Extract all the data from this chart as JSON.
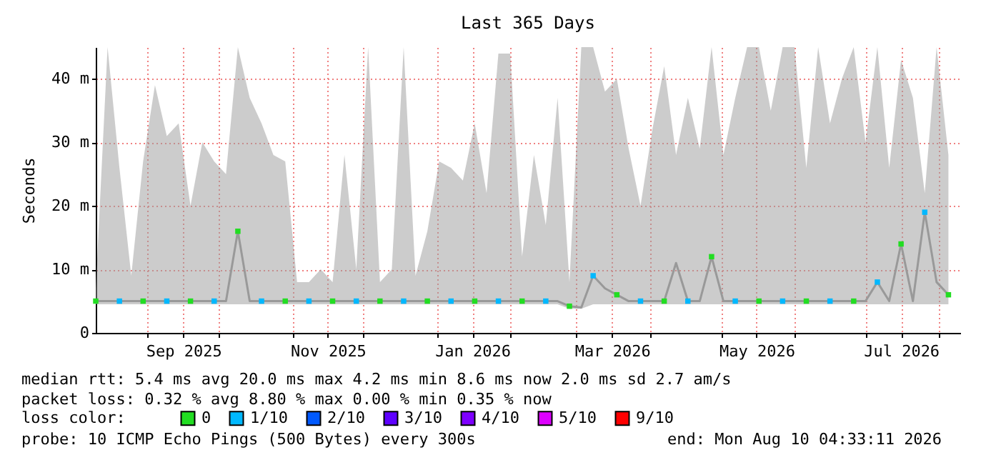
{
  "chart_data": {
    "type": "line",
    "title": "Last 365 Days",
    "ylabel": "Seconds",
    "x": [
      "2025-08-10",
      "2025-08-15",
      "2025-08-20",
      "2025-08-25",
      "2025-08-30",
      "2025-09-04",
      "2025-09-09",
      "2025-09-14",
      "2025-09-19",
      "2025-09-24",
      "2025-09-29",
      "2025-10-04",
      "2025-10-09",
      "2025-10-14",
      "2025-10-19",
      "2025-10-24",
      "2025-10-29",
      "2025-11-03",
      "2025-11-08",
      "2025-11-13",
      "2025-11-18",
      "2025-11-23",
      "2025-11-28",
      "2025-12-03",
      "2025-12-08",
      "2025-12-13",
      "2025-12-18",
      "2025-12-23",
      "2025-12-28",
      "2026-01-02",
      "2026-01-07",
      "2026-01-12",
      "2026-01-17",
      "2026-01-22",
      "2026-01-27",
      "2026-02-01",
      "2026-02-06",
      "2026-02-11",
      "2026-02-16",
      "2026-02-21",
      "2026-02-26",
      "2026-03-03",
      "2026-03-08",
      "2026-03-13",
      "2026-03-18",
      "2026-03-23",
      "2026-03-28",
      "2026-04-02",
      "2026-04-07",
      "2026-04-12",
      "2026-04-17",
      "2026-04-22",
      "2026-04-27",
      "2026-05-02",
      "2026-05-07",
      "2026-05-12",
      "2026-05-17",
      "2026-05-22",
      "2026-05-27",
      "2026-06-01",
      "2026-06-06",
      "2026-06-11",
      "2026-06-16",
      "2026-06-21",
      "2026-06-26",
      "2026-07-01",
      "2026-07-06",
      "2026-07-11",
      "2026-07-16",
      "2026-07-21",
      "2026-07-26",
      "2026-07-31",
      "2026-08-05"
    ],
    "series": [
      {
        "color": "#999999",
        "marker": "none",
        "values": [
          5,
          5,
          5,
          5,
          5,
          5,
          5,
          5,
          5,
          5,
          5,
          5,
          16,
          5,
          5,
          5,
          5,
          5,
          5,
          5,
          5,
          5,
          5,
          5,
          5,
          5,
          5,
          5,
          5,
          5,
          5,
          5,
          5,
          5,
          5,
          5,
          5,
          5,
          5,
          5,
          4.2,
          4,
          9,
          7,
          6,
          5,
          5,
          5,
          5,
          11,
          5,
          5,
          12,
          5,
          5,
          5,
          5,
          5,
          5,
          5,
          5,
          5,
          5,
          5,
          5,
          5,
          8,
          5,
          14,
          5,
          19,
          8,
          6
        ],
        "lower": [
          4.5,
          4.5,
          4.5,
          4.5,
          4.5,
          4.5,
          4.5,
          4.5,
          4.5,
          4.5,
          4.5,
          4.5,
          4.5,
          4.5,
          4.5,
          4.5,
          4.5,
          4.5,
          4.5,
          4.5,
          4.5,
          4.5,
          4.5,
          4.5,
          4.5,
          4.5,
          4.5,
          4.5,
          4.5,
          4.5,
          4.5,
          4.5,
          4.5,
          4.5,
          4.5,
          4.5,
          4.5,
          4.5,
          4.5,
          4.5,
          3.8,
          3.8,
          4.5,
          4.5,
          4.5,
          4.5,
          4.5,
          4.5,
          4.5,
          4.5,
          4.5,
          4.5,
          4.5,
          4.5,
          4.5,
          4.5,
          4.5,
          4.5,
          4.5,
          4.5,
          4.5,
          4.5,
          4.5,
          4.5,
          4.5,
          4.5,
          4.5,
          4.5,
          4.5,
          4.5,
          4.5,
          4.5,
          4.5
        ],
        "upper": [
          7,
          45,
          26,
          9,
          27,
          39,
          31,
          33,
          20,
          30,
          27,
          25,
          45,
          37,
          33,
          28,
          27,
          8,
          8,
          10,
          8,
          28,
          10,
          45,
          8,
          10,
          45,
          9,
          16,
          27,
          26,
          24,
          33,
          22,
          44,
          44,
          12,
          28,
          17,
          37,
          8,
          45,
          45,
          38,
          40,
          29,
          20,
          32,
          42,
          28,
          37,
          29,
          45,
          28,
          37,
          45,
          45,
          35,
          45,
          45,
          26,
          45,
          33,
          40,
          45,
          30,
          45,
          26,
          43,
          37,
          22,
          45,
          28
        ]
      },
      {
        "type": "scatter",
        "name": "0",
        "color": "#22dd22",
        "x": [
          "2025-08-10",
          "2025-08-30",
          "2025-09-19",
          "2025-10-09",
          "2025-10-29",
          "2025-11-18",
          "2025-12-08",
          "2025-12-28",
          "2026-01-17",
          "2026-02-06",
          "2026-02-26",
          "2026-03-18",
          "2026-04-07",
          "2026-04-27",
          "2026-05-17",
          "2026-06-06",
          "2026-06-26",
          "2026-07-16",
          "2026-08-05"
        ],
        "values": [
          5,
          5,
          5,
          16,
          5,
          5,
          5,
          5,
          5,
          5,
          4.2,
          6,
          5,
          12,
          5,
          5,
          5,
          14,
          6
        ]
      },
      {
        "type": "scatter",
        "name": "1/10",
        "color": "#00b8ff",
        "x": [
          "2025-08-20",
          "2025-09-09",
          "2025-09-29",
          "2025-10-19",
          "2025-11-08",
          "2025-11-28",
          "2025-12-18",
          "2026-01-07",
          "2026-01-27",
          "2026-02-16",
          "2026-03-08",
          "2026-03-28",
          "2026-04-17",
          "2026-05-07",
          "2026-05-27",
          "2026-06-16",
          "2026-07-06",
          "2026-07-26"
        ],
        "values": [
          5,
          5,
          5,
          5,
          5,
          5,
          5,
          5,
          5,
          5,
          9,
          5,
          5,
          5,
          5,
          5,
          8,
          19
        ]
      },
      {
        "type": "scatter",
        "name": "2/10",
        "color": "#0059ff",
        "values": [
          null,
          null,
          null,
          null,
          null,
          null,
          null,
          null,
          null,
          null,
          null,
          null,
          null,
          null,
          null,
          null,
          null,
          null,
          null,
          null,
          null,
          null,
          null,
          null,
          null,
          null,
          null,
          null,
          null,
          null,
          null,
          null,
          null,
          null,
          null,
          null,
          null,
          null,
          null,
          null,
          null,
          null,
          null,
          null,
          null,
          null,
          null,
          null,
          null,
          null,
          null,
          null,
          null,
          null,
          null,
          null,
          null,
          null,
          null,
          null,
          null,
          null,
          null,
          null,
          null,
          null,
          null,
          null,
          null,
          null,
          null,
          null,
          null
        ]
      },
      {
        "type": "scatter",
        "name": "3/10",
        "color": "#5e00ff",
        "values": [
          null,
          null,
          null,
          null,
          null,
          null,
          null,
          null,
          null,
          null,
          null,
          null,
          null,
          null,
          null,
          null,
          null,
          null,
          null,
          null,
          null,
          null,
          null,
          null,
          null,
          null,
          null,
          null,
          null,
          null,
          null,
          null,
          null,
          null,
          null,
          null,
          null,
          null,
          null,
          null,
          null,
          null,
          null,
          null,
          null,
          null,
          null,
          null,
          null,
          null,
          null,
          null,
          null,
          null,
          null,
          null,
          null,
          null,
          null,
          null,
          null,
          null,
          null,
          null,
          null,
          null,
          null,
          null,
          null,
          null,
          null,
          null,
          null
        ]
      },
      {
        "type": "scatter",
        "name": "4/10",
        "color": "#7e00ff",
        "values": [
          null,
          null,
          null,
          null,
          null,
          null,
          null,
          null,
          null,
          null,
          null,
          null,
          null,
          null,
          null,
          null,
          null,
          null,
          null,
          null,
          null,
          null,
          null,
          null,
          null,
          null,
          null,
          null,
          null,
          null,
          null,
          null,
          null,
          null,
          null,
          null,
          null,
          null,
          null,
          null,
          null,
          null,
          null,
          null,
          null,
          null,
          null,
          null,
          null,
          null,
          null,
          null,
          null,
          null,
          null,
          null,
          null,
          null,
          null,
          null,
          null,
          null,
          null,
          null,
          null,
          null,
          null,
          null,
          null,
          null,
          null,
          null,
          null
        ]
      },
      {
        "type": "scatter",
        "name": "5/10",
        "color": "#dd00ff",
        "values": [
          null,
          null,
          null,
          null,
          null,
          null,
          null,
          null,
          null,
          null,
          null,
          null,
          null,
          null,
          null,
          null,
          null,
          null,
          null,
          null,
          null,
          null,
          null,
          null,
          null,
          null,
          null,
          null,
          null,
          null,
          null,
          null,
          null,
          null,
          null,
          null,
          null,
          null,
          null,
          null,
          null,
          null,
          null,
          null,
          null,
          null,
          null,
          null,
          null,
          null,
          null,
          null,
          null,
          null,
          null,
          null,
          null,
          null,
          null,
          null,
          null,
          null,
          null,
          null,
          null,
          null,
          null,
          null,
          null,
          null,
          null,
          null,
          null
        ]
      },
      {
        "type": "scatter",
        "name": "9/10",
        "color": "#ff0000",
        "values": [
          null,
          null,
          null,
          null,
          null,
          null,
          null,
          null,
          null,
          null,
          null,
          null,
          null,
          null,
          null,
          null,
          null,
          null,
          null,
          null,
          null,
          null,
          null,
          null,
          null,
          null,
          null,
          null,
          null,
          null,
          null,
          null,
          null,
          null,
          null,
          null,
          null,
          null,
          null,
          null,
          null,
          null,
          null,
          null,
          null,
          null,
          null,
          null,
          null,
          null,
          null,
          null,
          null,
          null,
          null,
          null,
          null,
          null,
          null,
          null,
          null,
          null,
          null,
          null,
          null,
          null,
          null,
          null,
          null,
          null,
          null,
          null,
          null
        ]
      }
    ],
    "marker": "square",
    "legend": "bottom left",
    "legend_title": "loss color:",
    "grid": true,
    "xlim": [
      "2025-08-10",
      "2026-08-10"
    ],
    "xticks": [
      {
        "value": "2025-09-01",
        "label": null
      },
      {
        "value": "2025-09-16",
        "label": "Sep 2025"
      },
      {
        "value": "2025-10-01",
        "label": null
      },
      {
        "value": "2025-11-01",
        "label": null
      },
      {
        "value": "2025-11-16",
        "label": "Nov 2025"
      },
      {
        "value": "2025-12-01",
        "label": null
      },
      {
        "value": "2026-01-01",
        "label": null
      },
      {
        "value": "2026-01-16",
        "label": "Jan 2026"
      },
      {
        "value": "2026-02-01",
        "label": null
      },
      {
        "value": "2026-03-01",
        "label": null
      },
      {
        "value": "2026-03-16",
        "label": "Mar 2026"
      },
      {
        "value": "2026-04-01",
        "label": null
      },
      {
        "value": "2026-05-01",
        "label": null
      },
      {
        "value": "2026-05-16",
        "label": "May 2026"
      },
      {
        "value": "2026-06-01",
        "label": null
      },
      {
        "value": "2026-07-01",
        "label": null
      },
      {
        "value": "2026-07-16",
        "label": "Jul 2026"
      },
      {
        "value": "2026-08-01",
        "label": null
      }
    ],
    "ylim": [
      0,
      45
    ],
    "yticks": [
      {
        "value": 0,
        "label": "0"
      },
      {
        "value": 10,
        "label": "10 m"
      },
      {
        "value": 20,
        "label": "20 m"
      },
      {
        "value": 30,
        "label": "30 m"
      },
      {
        "value": 40,
        "label": "40 m"
      }
    ],
    "annotations": [
      "median rtt:  5.4 ms avg  20.0 ms max  4.2 ms min  8.6 ms now  2.0 ms sd  2.7   am/s",
      "packet loss: 0.32 % avg  8.80 % max  0.00 % min  0.35 % now",
      "probe:       10 ICMP Echo Pings (500 Bytes) every 300s",
      "end: Mon Aug 10 04:33:11 2026"
    ]
  }
}
